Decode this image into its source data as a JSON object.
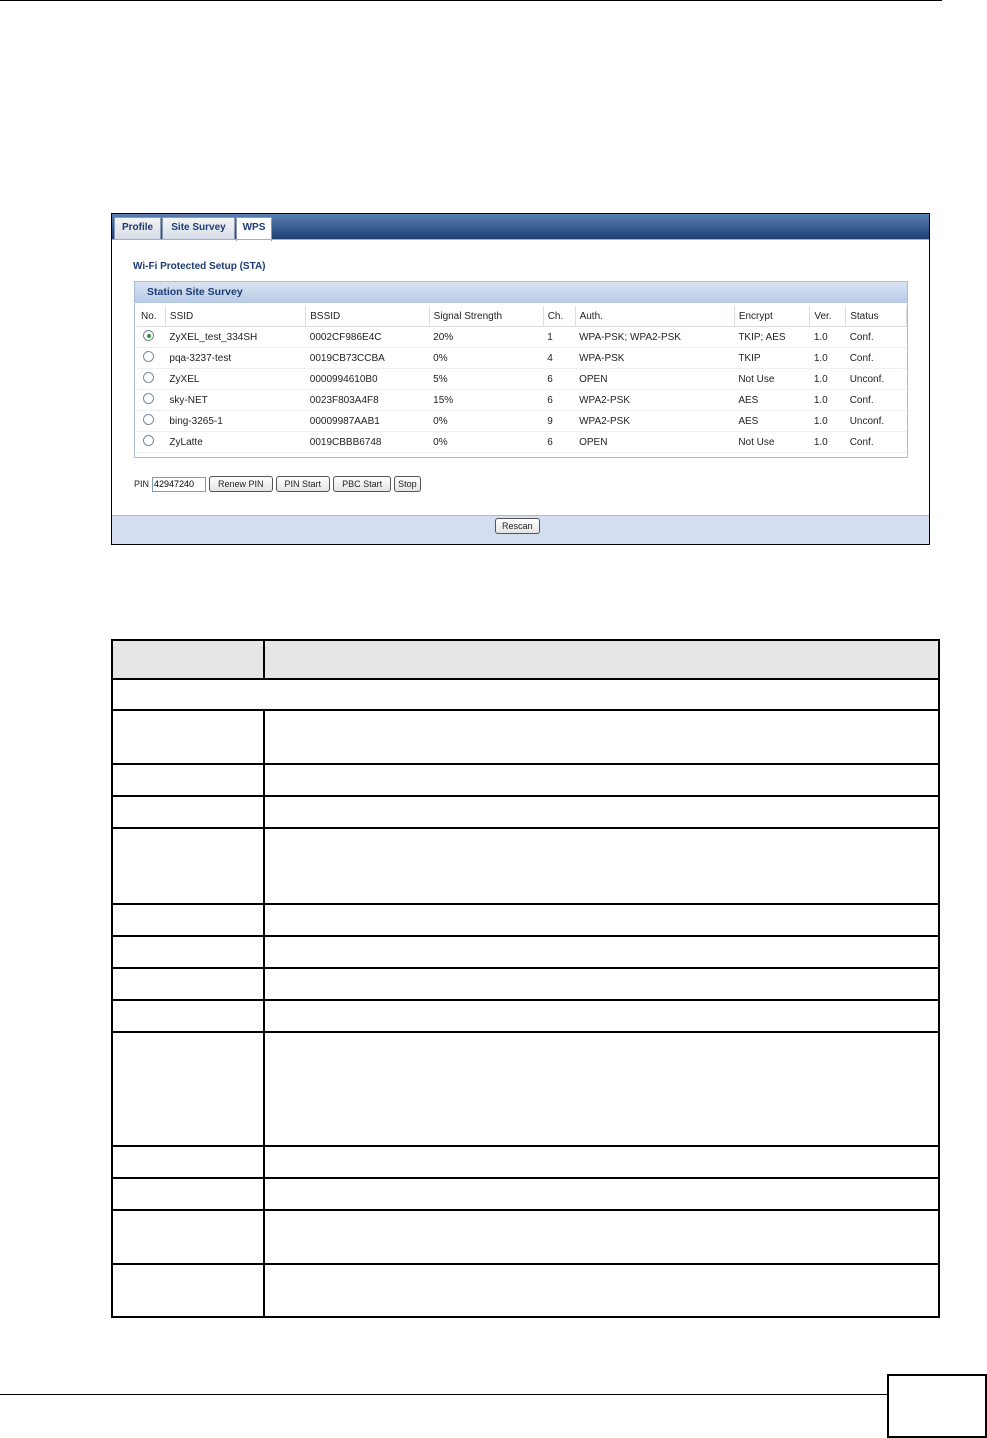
{
  "screenshot": {
    "tabs": [
      {
        "label": "Profile",
        "active": false
      },
      {
        "label": "Site Survey",
        "active": false
      },
      {
        "label": "WPS",
        "active": true
      }
    ],
    "title": "Wi-Fi Protected Setup (STA)",
    "survey": {
      "legend": "Station Site Survey",
      "columns": [
        "No.",
        "SSID",
        "BSSID",
        "Signal Strength",
        "Ch.",
        "Auth.",
        "Encrypt",
        "Ver.",
        "Status"
      ],
      "rows": [
        {
          "selected": true,
          "ssid": "ZyXEL_test_334SH",
          "bssid": "0002CF986E4C",
          "signal": "20%",
          "ch": "1",
          "auth": "WPA-PSK; WPA2-PSK",
          "encrypt": "TKIP; AES",
          "ver": "1.0",
          "status": "Conf."
        },
        {
          "selected": false,
          "ssid": "pqa-3237-test",
          "bssid": "0019CB73CCBA",
          "signal": "0%",
          "ch": "4",
          "auth": "WPA-PSK",
          "encrypt": "TKIP",
          "ver": "1.0",
          "status": "Conf."
        },
        {
          "selected": false,
          "ssid": "ZyXEL",
          "bssid": "0000994610B0",
          "signal": "5%",
          "ch": "6",
          "auth": "OPEN",
          "encrypt": "Not Use",
          "ver": "1.0",
          "status": "Unconf."
        },
        {
          "selected": false,
          "ssid": "sky-NET",
          "bssid": "0023F803A4F8",
          "signal": "15%",
          "ch": "6",
          "auth": "WPA2-PSK",
          "encrypt": "AES",
          "ver": "1.0",
          "status": "Conf."
        },
        {
          "selected": false,
          "ssid": "bing-3265-1",
          "bssid": "00009987AAB1",
          "signal": "0%",
          "ch": "9",
          "auth": "WPA2-PSK",
          "encrypt": "AES",
          "ver": "1.0",
          "status": "Unconf."
        },
        {
          "selected": false,
          "ssid": "ZyLatte",
          "bssid": "0019CBBB6748",
          "signal": "0%",
          "ch": "6",
          "auth": "OPEN",
          "encrypt": "Not Use",
          "ver": "1.0",
          "status": "Conf."
        }
      ]
    },
    "pin_label": "PIN",
    "pin_value": "42947240",
    "buttons": {
      "renew_pin": "Renew PIN",
      "pin_start": "PIN Start",
      "pbc_start": "PBC Start",
      "stop": "Stop",
      "rescan": "Rescan"
    }
  }
}
